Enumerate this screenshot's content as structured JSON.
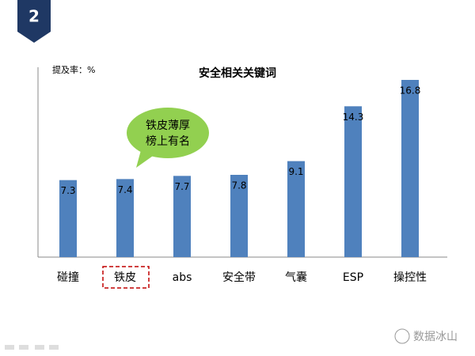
{
  "slide_number": "2",
  "watermark": "数据冰山",
  "chart_data": {
    "type": "bar",
    "title": "安全相关关键词",
    "y_label": "提及率：%",
    "categories": [
      "碰撞",
      "铁皮",
      "abs",
      "安全带",
      "气囊",
      "ESP",
      "操控性"
    ],
    "values": [
      7.3,
      7.4,
      7.7,
      7.8,
      9.1,
      14.3,
      16.8
    ],
    "color": "#4f81bd",
    "ylim": [
      0,
      18
    ],
    "annotation": [
      "铁皮薄厚",
      "榜上有名"
    ]
  }
}
